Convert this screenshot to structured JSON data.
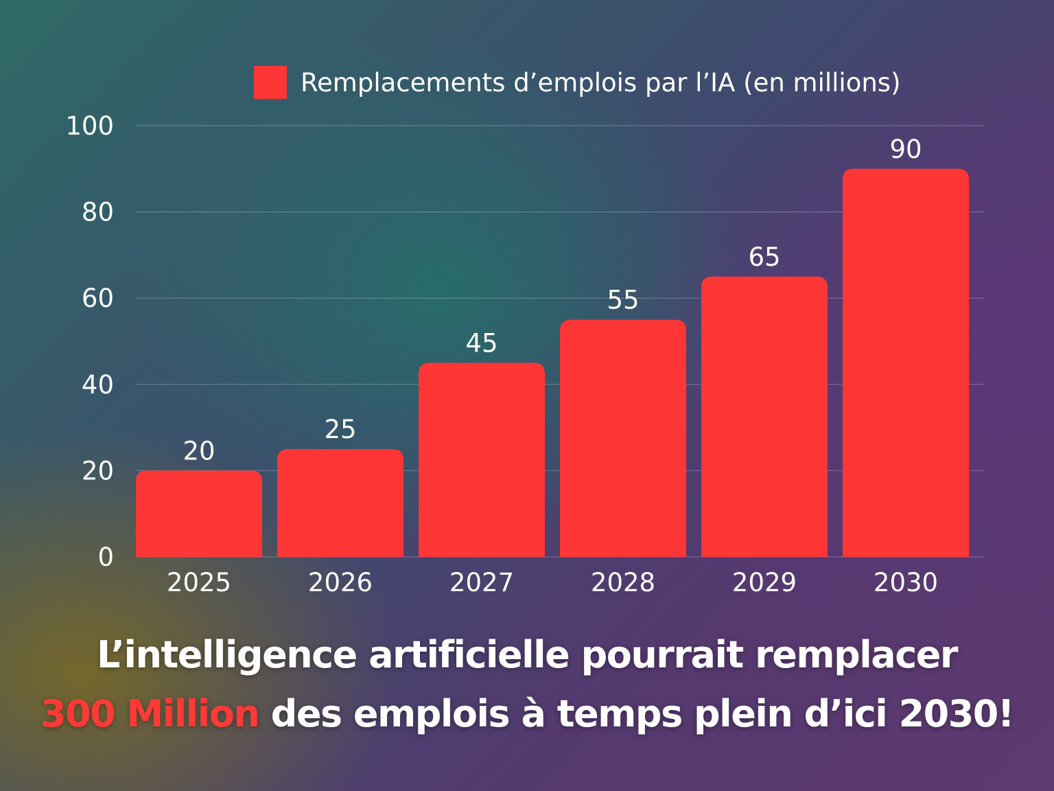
{
  "colors": {
    "bar": "#ff3636",
    "accent_text": "#ff3a36",
    "text": "#ffffff",
    "grid": "rgba(255,255,255,0.28)"
  },
  "legend": {
    "label": "Remplacements d’emplois par l’IA (en millions)"
  },
  "headline": {
    "line1": "L’intelligence artificielle pourrait remplacer",
    "line2_highlight": "300 Million",
    "line2_rest": " des emplois à temps plein d’ici 2030!"
  },
  "chart_data": {
    "type": "bar",
    "categories": [
      "2025",
      "2026",
      "2027",
      "2028",
      "2029",
      "2030"
    ],
    "series": [
      {
        "name": "Remplacements d’emplois par l’IA (en millions)",
        "values": [
          20,
          25,
          45,
          55,
          65,
          90
        ]
      }
    ],
    "ylim": [
      0,
      100
    ],
    "yticks": [
      0,
      20,
      40,
      60,
      80,
      100
    ],
    "grid": true,
    "legend_position": "top-right",
    "data_labels": true
  }
}
